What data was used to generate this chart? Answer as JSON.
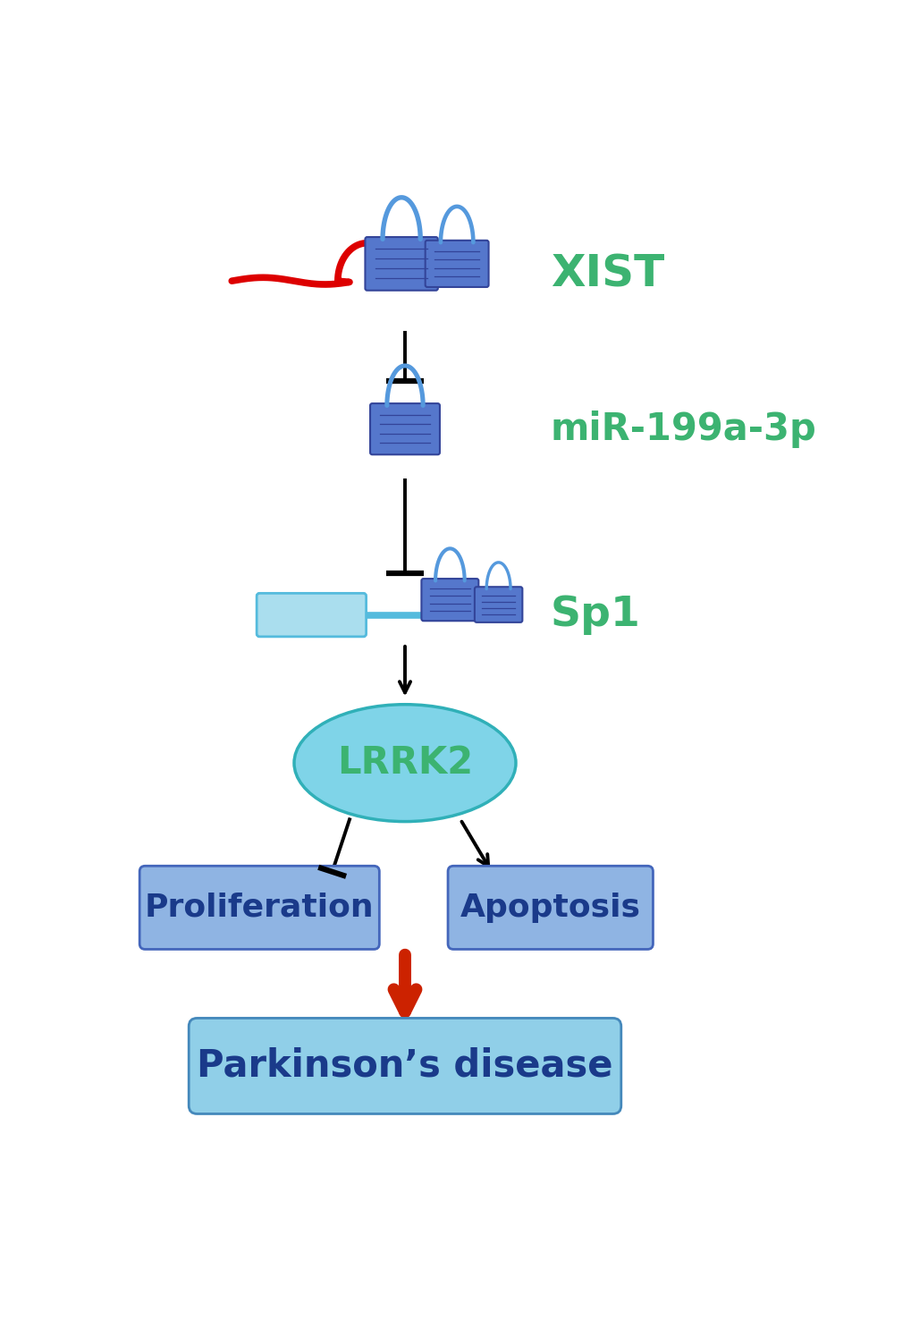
{
  "bg_color": "#ffffff",
  "xist_label": "XIST",
  "mir_label": "miR-199a-3p",
  "sp1_label": "Sp1",
  "lrrk2_label": "LRRK2",
  "prolif_label": "Proliferation",
  "apop_label": "Apoptosis",
  "pd_label": "Parkinson’s disease",
  "label_color": "#3cb371",
  "box_color_prolif": "#8fb4e3",
  "box_color_apop": "#8fb4e3",
  "box_color_pd": "#90cfe8",
  "lrrk2_fill": "#7fd4e8",
  "lrrk2_edge": "#30b0b8",
  "arrow_color": "#000000",
  "red_arrow_color": "#cc2200",
  "clip_body_color": "#5577cc",
  "clip_handle_color": "#5599dd",
  "clip_body_light": "#88aadd",
  "rna_color": "#dd0000",
  "sp1_bar_color": "#55bbdd",
  "sp1_domain_color": "#aadeee"
}
